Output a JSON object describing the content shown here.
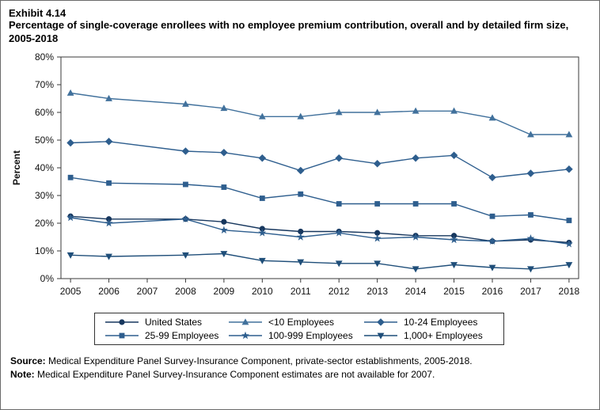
{
  "exhibit_label": "Exhibit 4.14",
  "title": "Percentage of single-coverage enrollees with no employee premium contribution, overall and by detailed firm size, 2005-2018",
  "source_label": "Source:",
  "source_text": " Medical Expenditure Panel Survey-Insurance Component, private-sector establishments, 2005-2018.",
  "note_label": "Note:",
  "note_text": " Medical Expenditure Panel Survey-Insurance Component estimates are not available for 2007.",
  "chart_data": {
    "type": "line",
    "title": "Percentage of single-coverage enrollees with no employee premium contribution, overall and by detailed firm size, 2005-2018",
    "xlabel": "",
    "ylabel": "Percent",
    "ylim": [
      0,
      80
    ],
    "ytick_step": 10,
    "ytick_suffix": "%",
    "grid": false,
    "legend_position": "bottom",
    "x": [
      2005,
      2006,
      2007,
      2008,
      2009,
      2010,
      2011,
      2012,
      2013,
      2014,
      2015,
      2016,
      2017,
      2018
    ],
    "note": "No data for 2007; lines connect 2006 to 2008 directly",
    "series": [
      {
        "name": "United States",
        "marker": "circle",
        "color": "#17375e",
        "values": [
          22.5,
          21.5,
          null,
          21.5,
          20.5,
          18,
          17,
          17,
          16.5,
          15.5,
          15.5,
          13.5,
          14,
          13
        ]
      },
      {
        "name": "<10 Employees",
        "marker": "triangle-up",
        "color": "#41719c",
        "values": [
          67,
          65,
          null,
          63,
          61.5,
          58.5,
          58.5,
          60,
          60,
          60.5,
          60.5,
          58,
          52,
          52
        ]
      },
      {
        "name": "10-24 Employees",
        "marker": "diamond",
        "color": "#2e5e8e",
        "values": [
          49,
          49.5,
          null,
          46,
          45.5,
          43.5,
          39,
          43.5,
          41.5,
          43.5,
          44.5,
          36.5,
          38,
          39.5
        ]
      },
      {
        "name": "25-99 Employees",
        "marker": "square",
        "color": "#2e5e8e",
        "values": [
          36.5,
          34.5,
          null,
          34,
          33,
          29,
          30.5,
          27,
          27,
          27,
          27,
          22.5,
          23,
          21
        ]
      },
      {
        "name": "100-999 Employees",
        "marker": "star",
        "color": "#2e5e8e",
        "values": [
          22,
          20,
          null,
          21.5,
          17.5,
          16.5,
          15,
          16.5,
          14.5,
          15,
          14,
          13.5,
          14.5,
          12.5
        ]
      },
      {
        "name": "1,000+ Employees",
        "marker": "triangle-down",
        "color": "#1f4e79",
        "values": [
          8.5,
          8,
          null,
          8.5,
          9,
          6.5,
          6,
          5.5,
          5.5,
          3.5,
          5,
          4,
          3.5,
          5
        ]
      }
    ]
  }
}
